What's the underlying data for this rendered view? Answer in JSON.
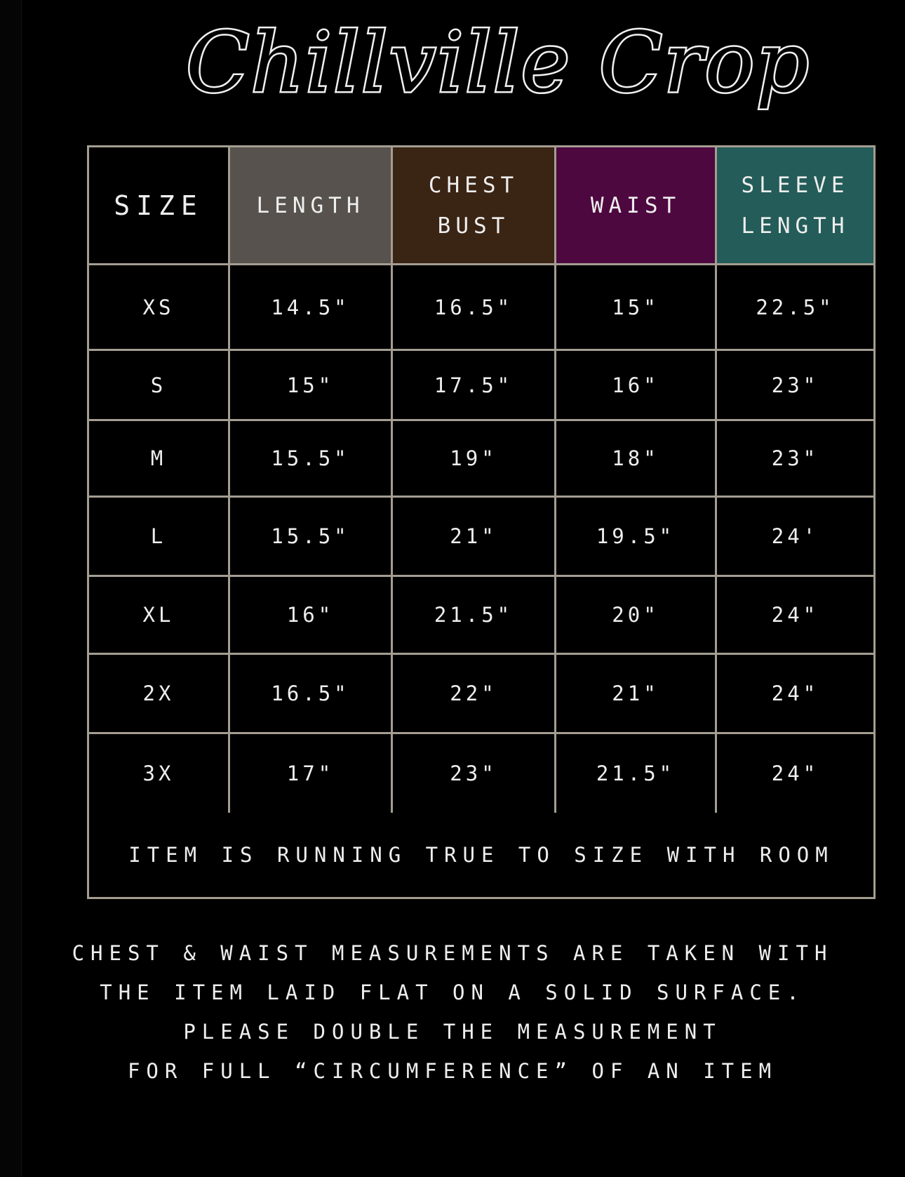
{
  "title": "Chillville Crop",
  "colors": {
    "size": "#000000",
    "length": "#57524d",
    "chest": "#3a2414",
    "waist": "#4e0840",
    "sleeve": "#235c58",
    "border": "#a49d92"
  },
  "headers": [
    {
      "lines": [
        "SIZE"
      ]
    },
    {
      "lines": [
        "LENGTH"
      ]
    },
    {
      "lines": [
        "CHEST",
        "BUST"
      ]
    },
    {
      "lines": [
        "WAIST"
      ]
    },
    {
      "lines": [
        "SLEEVE",
        "LENGTH"
      ]
    }
  ],
  "rows": [
    [
      "XS",
      "14.5\"",
      "16.5\"",
      "15\"",
      "22.5\""
    ],
    [
      "S",
      "15\"",
      "17.5\"",
      "16\"",
      "23\""
    ],
    [
      "M",
      "15.5\"",
      "19\"",
      "18\"",
      "23\""
    ],
    [
      "L",
      "15.5\"",
      "21\"",
      "19.5\"",
      "24'"
    ],
    [
      "XL",
      "16\"",
      "21.5\"",
      "20\"",
      "24\""
    ],
    [
      "2X",
      "16.5\"",
      "22\"",
      "21\"",
      "24\""
    ],
    [
      "3X",
      "17\"",
      "23\"",
      "21.5\"",
      "24\""
    ]
  ],
  "fit_note": "ITEM IS RUNNING TRUE TO SIZE WITH ROOM",
  "footer_lines": [
    "CHEST & WAIST MEASUREMENTS ARE TAKEN WITH",
    "THE ITEM LAID FLAT ON A SOLID SURFACE.",
    "PLEASE DOUBLE THE MEASUREMENT",
    "FOR FULL “CIRCUMFERENCE” OF AN ITEM"
  ]
}
